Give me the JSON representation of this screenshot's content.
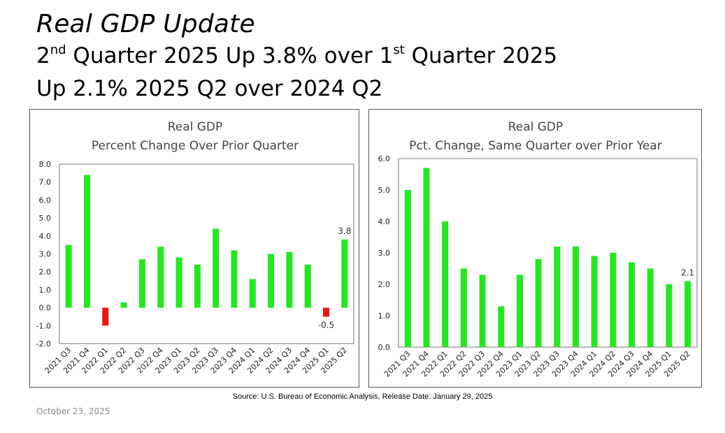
{
  "slide": {
    "title": "Real GDP Update",
    "subtitle1": {
      "a": "2",
      "a_sup": "nd",
      "b": " Quarter 2025 Up 3.8% over 1",
      "b_sup": "st",
      "c": " Quarter 2025"
    },
    "subtitle2": "Up 2.1% 2025 Q2 over 2024 Q2",
    "source": "Source:  U.S. Bureau of Economic Analysis, Release Date: January 29, 2025",
    "date": "October 23, 2025"
  },
  "chart_data": [
    {
      "type": "bar",
      "title": "Real GDP",
      "subtitle": "Percent Change Over Prior Quarter",
      "categories": [
        "2021 Q3",
        "2021 Q4",
        "2022 Q1",
        "2022 Q2",
        "2022 Q3",
        "2022 Q4",
        "2023 Q1",
        "2023 Q2",
        "2023 Q3",
        "2023 Q4",
        "2024 Q1",
        "2024 Q2",
        "2024 Q3",
        "2024 Q4",
        "2025 Q1",
        "2025 Q2"
      ],
      "values": [
        3.5,
        7.4,
        -1.0,
        0.3,
        2.7,
        3.4,
        2.8,
        2.4,
        4.4,
        3.2,
        1.6,
        3.0,
        3.1,
        2.4,
        -0.5,
        3.8
      ],
      "ylim": [
        -2.0,
        8.0
      ],
      "yticks": [
        "-2.0",
        "-1.0",
        "0.0",
        "1.0",
        "2.0",
        "3.0",
        "4.0",
        "5.0",
        "6.0",
        "7.0",
        "8.0"
      ],
      "data_labels": {
        "14": "-0.5",
        "15": "3.8"
      },
      "colors": {
        "positive": "#22e81f",
        "negative": "#ee1111"
      },
      "grid": false
    },
    {
      "type": "bar",
      "title": "Real GDP",
      "subtitle": "Pct. Change, Same Quarter over Prior Year",
      "categories": [
        "2021 Q3",
        "2021 Q4",
        "2022 Q1",
        "2022 Q2",
        "2022 Q3",
        "2022 Q4",
        "2023 Q1",
        "2023 Q2",
        "2023 Q3",
        "2023 Q4",
        "2024 Q1",
        "2024 Q2",
        "2024 Q3",
        "2024 Q4",
        "2025 Q1",
        "2025 Q2"
      ],
      "values": [
        5.0,
        5.7,
        4.0,
        2.5,
        2.3,
        1.3,
        2.3,
        2.8,
        3.2,
        3.2,
        2.9,
        3.0,
        2.7,
        2.5,
        2.0,
        2.1
      ],
      "ylim": [
        0.0,
        6.0
      ],
      "yticks": [
        "0.0",
        "1.0",
        "2.0",
        "3.0",
        "4.0",
        "5.0",
        "6.0"
      ],
      "data_labels": {
        "15": "2.1"
      },
      "colors": {
        "positive": "#22e81f",
        "negative": "#ee1111"
      },
      "grid": false
    }
  ]
}
